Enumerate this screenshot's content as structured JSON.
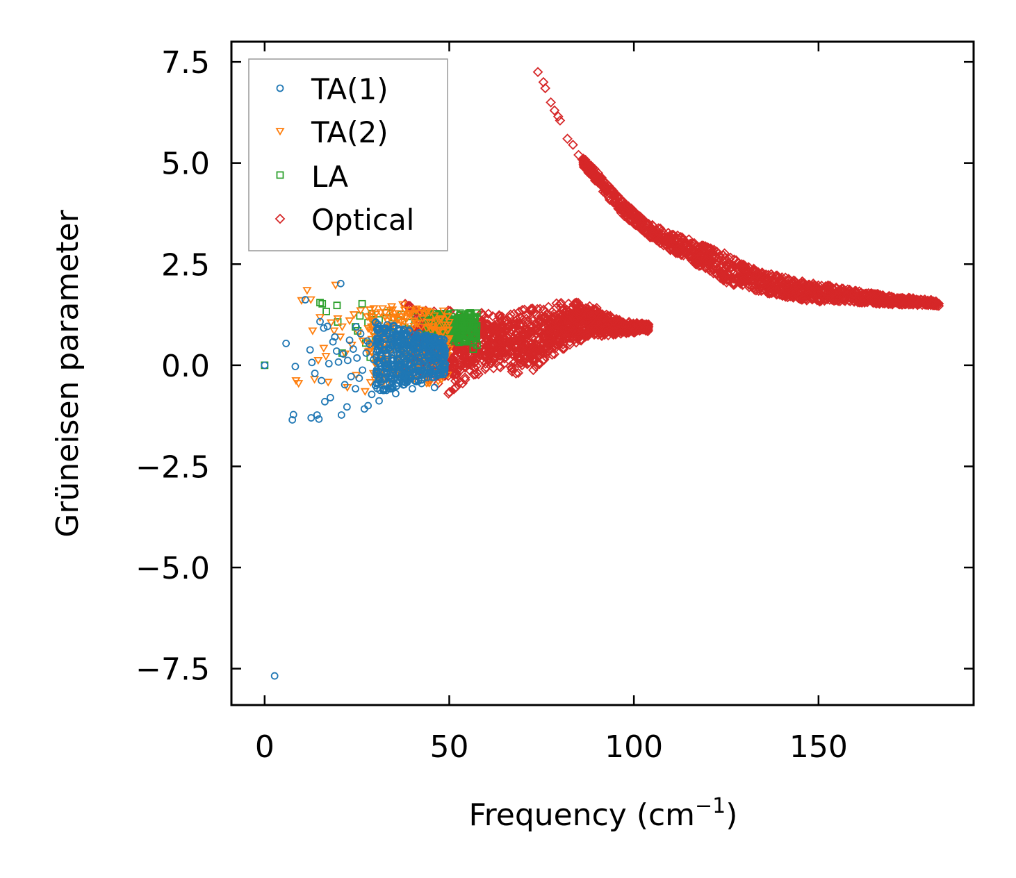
{
  "chart_data": {
    "type": "scatter",
    "title": "",
    "xlabel": "Frequency (cm",
    "xlabel_sup": "−1",
    "xlabel_end": ")",
    "ylabel": "Grüneisen parameter",
    "xlim": [
      -9,
      192
    ],
    "ylim": [
      -8.4,
      8.0
    ],
    "xticks": [
      0,
      50,
      100,
      150
    ],
    "xtick_labels": [
      "0",
      "50",
      "100",
      "150"
    ],
    "yticks": [
      7.5,
      5.0,
      2.5,
      0.0,
      -2.5,
      -5.0,
      -7.5
    ],
    "ytick_labels": [
      "7.5",
      "5.0",
      "2.5",
      "0.0",
      "−2.5",
      "−5.0",
      "−7.5"
    ],
    "legend_position": "top-left",
    "series": [
      {
        "name": "TA(1)",
        "marker": "circle",
        "color": "#1f77b4",
        "points": [
          [
            0.0,
            0.0
          ],
          [
            2.7,
            -7.68
          ],
          [
            5.8,
            0.54
          ],
          [
            7.5,
            -1.35
          ],
          [
            7.8,
            -1.22
          ],
          [
            8.3,
            -0.03
          ],
          [
            11.0,
            1.62
          ],
          [
            12.3,
            0.38
          ],
          [
            12.6,
            -1.3
          ],
          [
            12.8,
            0.07
          ],
          [
            13.6,
            -0.2
          ],
          [
            14.2,
            -1.23
          ],
          [
            14.7,
            -1.33
          ],
          [
            15.0,
            1.08
          ],
          [
            15.4,
            -0.38
          ],
          [
            16.0,
            0.92
          ],
          [
            16.3,
            -0.9
          ],
          [
            17.0,
            0.96
          ],
          [
            17.4,
            0.04
          ],
          [
            17.8,
            -0.8
          ],
          [
            18.5,
            0.58
          ],
          [
            19.0,
            0.7
          ],
          [
            19.5,
            0.35
          ],
          [
            20.0,
            0.08
          ],
          [
            20.6,
            2.02
          ],
          [
            20.8,
            -1.23
          ],
          [
            21.3,
            0.28
          ],
          [
            21.7,
            -0.48
          ],
          [
            22.3,
            -1.03
          ],
          [
            22.5,
            0.12
          ],
          [
            23.0,
            0.62
          ],
          [
            23.4,
            -0.28
          ],
          [
            24.0,
            0.4
          ],
          [
            24.6,
            -0.58
          ],
          [
            25.0,
            0.18
          ],
          [
            25.6,
            -0.32
          ],
          [
            26.0,
            0.78
          ],
          [
            26.5,
            -0.12
          ],
          [
            27.0,
            -1.08
          ],
          [
            27.5,
            0.3
          ],
          [
            28.0,
            -1.0
          ],
          [
            28.4,
            0.52
          ],
          [
            29.0,
            -0.72
          ],
          [
            29.5,
            0.14
          ],
          [
            30.0,
            -0.5
          ],
          [
            30.5,
            0.86
          ],
          [
            31.0,
            -0.88
          ],
          [
            31.5,
            0.22
          ],
          [
            32.0,
            -0.35
          ],
          [
            32.5,
            0.64
          ],
          [
            33.0,
            -0.62
          ],
          [
            33.5,
            0.02
          ],
          [
            34.0,
            0.44
          ],
          [
            34.5,
            -0.2
          ],
          [
            35.0,
            0.98
          ],
          [
            35.5,
            -0.7
          ],
          [
            36.0,
            0.28
          ],
          [
            36.5,
            -0.05
          ],
          [
            37.0,
            0.72
          ],
          [
            37.5,
            -0.4
          ],
          [
            38.0,
            0.16
          ],
          [
            38.5,
            0.54
          ],
          [
            39.0,
            -0.26
          ],
          [
            39.5,
            0.38
          ],
          [
            40.0,
            -0.58
          ],
          [
            40.5,
            0.08
          ],
          [
            41.0,
            0.66
          ],
          [
            41.5,
            -0.15
          ],
          [
            42.0,
            0.3
          ],
          [
            42.5,
            -0.45
          ],
          [
            43.0,
            0.12
          ],
          [
            43.5,
            0.5
          ],
          [
            44.0,
            -0.3
          ],
          [
            44.5,
            0.22
          ],
          [
            45.0,
            -0.1
          ],
          [
            45.5,
            0.4
          ],
          [
            46.0,
            -0.55
          ],
          [
            46.5,
            0.18
          ],
          [
            47.0,
            0.05
          ],
          [
            47.5,
            0.3
          ],
          [
            48.0,
            0.12
          ],
          [
            48.5,
            0.25
          ],
          [
            33.2,
            1.0
          ],
          [
            36.2,
            0.9
          ],
          [
            39.2,
            0.84
          ],
          [
            41.8,
            0.8
          ],
          [
            24.8,
            0.95
          ],
          [
            27.8,
            0.6
          ],
          [
            30.8,
            -0.15
          ],
          [
            44.8,
            0.45
          ]
        ]
      },
      {
        "name": "TA(2)",
        "marker": "triangle-down",
        "color": "#ff7f0e",
        "points": [
          [
            8.5,
            -0.38
          ],
          [
            9.2,
            -0.45
          ],
          [
            10.0,
            1.6
          ],
          [
            11.5,
            1.85
          ],
          [
            12.5,
            1.62
          ],
          [
            13.0,
            0.85
          ],
          [
            13.5,
            -0.35
          ],
          [
            14.5,
            0.12
          ],
          [
            15.0,
            1.18
          ],
          [
            16.0,
            0.42
          ],
          [
            16.6,
            0.22
          ],
          [
            17.2,
            -0.42
          ],
          [
            18.0,
            1.05
          ],
          [
            18.8,
            0.85
          ],
          [
            19.2,
            1.98
          ],
          [
            19.8,
            1.15
          ],
          [
            20.5,
            0.7
          ],
          [
            21.0,
            0.95
          ],
          [
            21.8,
            0.28
          ],
          [
            22.4,
            -0.55
          ],
          [
            23.0,
            1.1
          ],
          [
            23.6,
            0.5
          ],
          [
            24.2,
            1.25
          ],
          [
            24.8,
            -0.25
          ],
          [
            25.4,
            0.8
          ],
          [
            26.0,
            1.35
          ],
          [
            26.6,
            0.6
          ],
          [
            27.2,
            -0.65
          ],
          [
            27.8,
            1.2
          ],
          [
            28.4,
            0.35
          ],
          [
            29.0,
            0.95
          ],
          [
            29.6,
            1.4
          ],
          [
            30.2,
            0.2
          ],
          [
            30.8,
            0.75
          ],
          [
            31.4,
            1.3
          ],
          [
            32.0,
            -0.45
          ],
          [
            32.6,
            0.55
          ],
          [
            33.2,
            1.1
          ],
          [
            33.8,
            0.3
          ],
          [
            34.4,
            1.45
          ],
          [
            35.0,
            0.65
          ],
          [
            35.6,
            -0.2
          ],
          [
            36.2,
            1.0
          ],
          [
            36.8,
            0.4
          ],
          [
            37.4,
            1.5
          ],
          [
            38.0,
            0.85
          ],
          [
            38.6,
            0.1
          ],
          [
            39.2,
            1.25
          ],
          [
            39.8,
            0.6
          ],
          [
            40.4,
            -0.35
          ],
          [
            41.0,
            1.35
          ],
          [
            41.6,
            0.75
          ],
          [
            42.2,
            0.25
          ],
          [
            42.8,
            1.15
          ],
          [
            43.4,
            0.5
          ],
          [
            44.0,
            1.3
          ],
          [
            44.6,
            -0.1
          ],
          [
            45.2,
            0.95
          ],
          [
            45.8,
            0.35
          ],
          [
            46.4,
            1.1
          ],
          [
            47.0,
            -0.4
          ],
          [
            47.6,
            0.7
          ],
          [
            48.2,
            1.0
          ],
          [
            48.8,
            0.2
          ],
          [
            49.4,
            0.85
          ],
          [
            50.0,
            0.4
          ],
          [
            34.8,
            1.15
          ],
          [
            37.9,
            0.95
          ],
          [
            40.9,
            0.55
          ],
          [
            43.9,
            0.9
          ],
          [
            46.9,
            0.6
          ],
          [
            31.9,
            0.9
          ]
        ]
      },
      {
        "name": "LA",
        "marker": "square",
        "color": "#2ca02c",
        "points": [
          [
            0.0,
            0.0
          ],
          [
            15.0,
            1.55
          ],
          [
            15.6,
            1.52
          ],
          [
            16.7,
            1.33
          ],
          [
            19.6,
            1.48
          ],
          [
            19.8,
            1.07
          ],
          [
            21.0,
            0.3
          ],
          [
            25.2,
            0.85
          ],
          [
            25.8,
            1.22
          ],
          [
            26.4,
            1.52
          ],
          [
            27.4,
            0.55
          ],
          [
            28.0,
            1.05
          ],
          [
            29.0,
            1.28
          ],
          [
            30.0,
            0.7
          ],
          [
            31.0,
            1.12
          ],
          [
            32.0,
            0.4
          ],
          [
            33.0,
            1.3
          ],
          [
            34.0,
            0.95
          ],
          [
            35.0,
            1.18
          ],
          [
            36.0,
            0.6
          ],
          [
            37.0,
            1.25
          ],
          [
            38.0,
            0.88
          ],
          [
            39.0,
            1.05
          ],
          [
            40.0,
            0.45
          ],
          [
            41.0,
            1.2
          ],
          [
            42.0,
            0.75
          ],
          [
            43.0,
            1.1
          ],
          [
            44.0,
            0.55
          ],
          [
            45.0,
            1.25
          ],
          [
            46.0,
            0.9
          ],
          [
            47.0,
            1.15
          ],
          [
            48.0,
            0.65
          ],
          [
            49.0,
            1.2
          ],
          [
            50.0,
            0.95
          ],
          [
            51.0,
            1.1
          ],
          [
            52.0,
            0.8
          ],
          [
            53.0,
            1.25
          ],
          [
            54.0,
            0.6
          ],
          [
            55.0,
            1.05
          ],
          [
            56.0,
            0.85
          ],
          [
            57.0,
            1.2
          ],
          [
            57.5,
            0.5
          ],
          [
            24.6,
            0.95
          ],
          [
            28.6,
            0.2
          ],
          [
            50.5,
            0.7
          ],
          [
            53.5,
            1.0
          ],
          [
            55.5,
            1.25
          ],
          [
            56.5,
            0.4
          ],
          [
            48.5,
            1.05
          ],
          [
            44.5,
            0.85
          ]
        ]
      },
      {
        "name": "Optical",
        "marker": "diamond",
        "color": "#d62728",
        "curve_points": [
          [
            74.0,
            7.25
          ],
          [
            75.5,
            7.0
          ],
          [
            76.0,
            6.85
          ],
          [
            77.5,
            6.5
          ],
          [
            78.5,
            6.3
          ],
          [
            79.5,
            6.15
          ],
          [
            80.0,
            6.05
          ],
          [
            82.0,
            5.6
          ],
          [
            83.5,
            5.45
          ],
          [
            85.0,
            5.2
          ],
          [
            86.5,
            5.0
          ],
          [
            88.0,
            4.85
          ],
          [
            90.0,
            4.65
          ],
          [
            92.0,
            4.4
          ],
          [
            94.0,
            4.2
          ],
          [
            96.0,
            4.0
          ],
          [
            98.0,
            3.8
          ],
          [
            100.0,
            3.65
          ],
          [
            103.0,
            3.4
          ],
          [
            106.0,
            3.25
          ],
          [
            110.0,
            3.05
          ],
          [
            114.0,
            2.9
          ],
          [
            118.0,
            2.7
          ],
          [
            122.0,
            2.55
          ],
          [
            126.0,
            2.35
          ],
          [
            130.0,
            2.2
          ],
          [
            135.0,
            2.05
          ],
          [
            140.0,
            1.95
          ],
          [
            145.0,
            1.85
          ],
          [
            150.0,
            1.8
          ],
          [
            155.0,
            1.75
          ],
          [
            160.0,
            1.7
          ],
          [
            165.0,
            1.65
          ],
          [
            170.0,
            1.6
          ],
          [
            175.0,
            1.58
          ],
          [
            180.0,
            1.55
          ],
          [
            183.0,
            1.52
          ]
        ],
        "curve_spread": [
          [
            88.0,
            0.25
          ],
          [
            95.0,
            0.35
          ],
          [
            105.0,
            0.35
          ],
          [
            120.0,
            0.6
          ],
          [
            125.0,
            0.7
          ],
          [
            135.0,
            0.5
          ],
          [
            150.0,
            0.45
          ],
          [
            160.0,
            0.3
          ],
          [
            170.0,
            0.2
          ],
          [
            183.0,
            0.12
          ]
        ],
        "cloud_upper": [
          [
            30.0,
            1.05
          ],
          [
            36.0,
            1.85
          ],
          [
            40.0,
            1.4
          ],
          [
            45.0,
            1.35
          ],
          [
            50.0,
            1.4
          ],
          [
            55.0,
            1.2
          ],
          [
            60.0,
            1.35
          ],
          [
            65.0,
            1.2
          ],
          [
            70.0,
            1.45
          ],
          [
            75.0,
            1.4
          ],
          [
            80.0,
            1.6
          ],
          [
            85.0,
            1.55
          ],
          [
            90.0,
            1.45
          ],
          [
            94.0,
            1.2
          ],
          [
            98.0,
            1.05
          ],
          [
            104.0,
            0.98
          ]
        ],
        "cloud_lower": [
          [
            30.0,
            0.2
          ],
          [
            36.0,
            -0.2
          ],
          [
            40.0,
            -0.25
          ],
          [
            45.0,
            -0.35
          ],
          [
            50.0,
            -0.75
          ],
          [
            55.0,
            -0.35
          ],
          [
            60.0,
            -0.15
          ],
          [
            65.0,
            -0.05
          ],
          [
            70.0,
            -0.35
          ],
          [
            75.0,
            0.05
          ],
          [
            80.0,
            0.35
          ],
          [
            85.0,
            0.55
          ],
          [
            90.0,
            0.7
          ],
          [
            94.0,
            0.75
          ],
          [
            98.0,
            0.8
          ],
          [
            104.0,
            0.9
          ]
        ]
      }
    ]
  }
}
